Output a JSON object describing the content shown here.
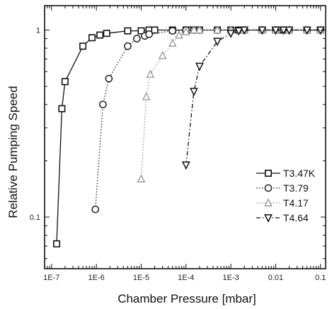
{
  "chart_data": {
    "type": "scatter",
    "xlabel": "Chamber Pressure [mbar]",
    "ylabel": "Relative Pumping Speed",
    "x_scale": "log",
    "y_scale": "log",
    "xlim": [
      7e-08,
      0.13
    ],
    "ylim": [
      0.053,
      1.35
    ],
    "x_ticks": [
      {
        "value": 1e-07,
        "label": "1E-7"
      },
      {
        "value": 1e-06,
        "label": "1E-6"
      },
      {
        "value": 1e-05,
        "label": "1E-5"
      },
      {
        "value": 0.0001,
        "label": "1E-4"
      },
      {
        "value": 0.001,
        "label": "1E-3"
      },
      {
        "value": 0.01,
        "label": "0.01"
      },
      {
        "value": 0.1,
        "label": "0.1"
      }
    ],
    "y_ticks": [
      {
        "value": 1,
        "label": "1"
      },
      {
        "value": 0.1,
        "label": "0.1"
      }
    ],
    "grid": false,
    "legend_position": "right",
    "series": [
      {
        "name": "T3.47K",
        "marker": "square",
        "color": "#111111",
        "line_style": "solid",
        "points": [
          [
            1.3e-07,
            0.072
          ],
          [
            1.7e-07,
            0.38
          ],
          [
            2e-07,
            0.53
          ],
          [
            5e-07,
            0.82
          ],
          [
            8e-07,
            0.91
          ],
          [
            1.2e-06,
            0.94
          ],
          [
            1.7e-06,
            0.96
          ],
          [
            5e-06,
            0.99
          ],
          [
            1e-05,
            0.99
          ],
          [
            1.5e-05,
            1.0
          ],
          [
            2e-05,
            1.0
          ],
          [
            5e-05,
            1.0
          ],
          [
            0.0001,
            1.0
          ],
          [
            0.00012,
            1.0
          ],
          [
            0.00015,
            1.0
          ],
          [
            0.0002,
            1.0
          ],
          [
            0.0005,
            1.0
          ],
          [
            0.001,
            1.0
          ],
          [
            0.0015,
            1.0
          ],
          [
            0.002,
            1.0
          ],
          [
            0.005,
            1.0
          ],
          [
            0.01,
            1.0
          ],
          [
            0.012,
            1.0
          ],
          [
            0.015,
            1.0
          ],
          [
            0.02,
            1.0
          ],
          [
            0.05,
            1.0
          ],
          [
            0.1,
            1.0
          ]
        ]
      },
      {
        "name": "T3.79",
        "marker": "circle",
        "color": "#222222",
        "line_style": "dotted",
        "points": [
          [
            9.5e-07,
            0.11
          ],
          [
            1.4e-06,
            0.4
          ],
          [
            1.9e-06,
            0.55
          ],
          [
            5e-06,
            0.82
          ],
          [
            8e-06,
            0.9
          ],
          [
            1.2e-05,
            0.93
          ],
          [
            1.5e-05,
            0.95
          ],
          [
            5e-05,
            0.99
          ],
          [
            0.0001,
            1.0
          ],
          [
            0.00015,
            1.0
          ],
          [
            0.0002,
            1.0
          ],
          [
            0.0005,
            1.0
          ],
          [
            0.001,
            1.0
          ],
          [
            0.002,
            1.0
          ],
          [
            0.005,
            1.0
          ],
          [
            0.01,
            1.0
          ],
          [
            0.015,
            1.0
          ],
          [
            0.02,
            1.0
          ],
          [
            0.05,
            1.0
          ],
          [
            0.1,
            1.0
          ]
        ]
      },
      {
        "name": "T4.17",
        "marker": "triangle-up",
        "color": "#9a9a9a",
        "line_style": "dotted",
        "points": [
          [
            1e-05,
            0.16
          ],
          [
            1.3e-05,
            0.44
          ],
          [
            1.6e-05,
            0.58
          ],
          [
            3e-05,
            0.73
          ],
          [
            5e-05,
            0.85
          ],
          [
            7e-05,
            0.94
          ],
          [
            0.0001,
            0.98
          ],
          [
            0.00015,
            1.0
          ],
          [
            0.0002,
            1.0
          ],
          [
            0.0005,
            1.0
          ],
          [
            0.001,
            1.0
          ],
          [
            0.002,
            1.0
          ],
          [
            0.005,
            1.0
          ],
          [
            0.01,
            1.0
          ],
          [
            0.02,
            1.0
          ],
          [
            0.05,
            1.0
          ],
          [
            0.1,
            1.0
          ]
        ]
      },
      {
        "name": "T4.64",
        "marker": "triangle-down",
        "color": "#111111",
        "line_style": "dash-dot",
        "points": [
          [
            0.0001,
            0.19
          ],
          [
            0.00015,
            0.47
          ],
          [
            0.0002,
            0.64
          ],
          [
            0.0005,
            0.87
          ],
          [
            0.001,
            0.96
          ],
          [
            0.0015,
            0.99
          ],
          [
            0.002,
            1.0
          ],
          [
            0.005,
            1.0
          ],
          [
            0.01,
            1.0
          ],
          [
            0.015,
            1.0
          ],
          [
            0.02,
            1.0
          ],
          [
            0.05,
            1.0
          ],
          [
            0.1,
            1.0
          ]
        ]
      }
    ]
  }
}
